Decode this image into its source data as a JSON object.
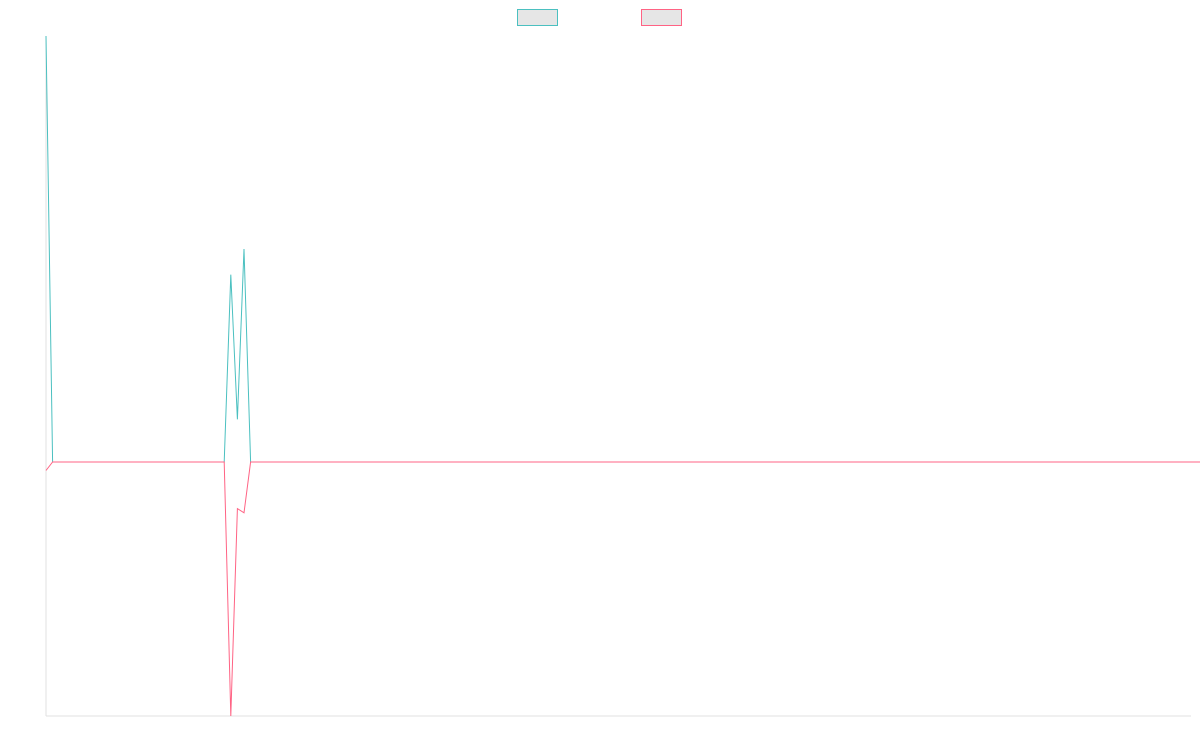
{
  "chart_data": {
    "type": "line",
    "title": "",
    "xlabel": "",
    "ylabel": "",
    "grid": false,
    "legend_position": "top",
    "x_points": 176,
    "ylim": [
      -1,
      1
    ],
    "series": [
      {
        "name": "",
        "color": "#4bc0c0",
        "legend_fill": "#e6e6e6",
        "values": [
          1,
          0,
          0,
          0,
          0,
          0,
          0,
          0,
          0,
          0,
          0,
          0,
          0,
          0,
          0,
          0,
          0,
          0,
          0,
          0,
          0,
          0,
          0,
          0,
          0,
          0,
          0,
          0,
          0.44,
          0.1,
          0.5,
          0,
          0,
          0,
          0,
          0,
          0,
          0,
          0,
          0,
          0,
          0,
          0,
          0,
          0,
          0,
          0,
          0,
          0,
          0,
          0,
          0,
          0,
          0,
          0,
          0,
          0,
          0,
          0,
          0,
          0,
          0,
          0,
          0,
          0,
          0,
          0,
          0,
          0,
          0,
          0,
          0,
          0,
          0,
          0,
          0,
          0,
          0,
          0,
          0,
          0,
          0,
          0,
          0,
          0,
          0,
          0,
          0,
          0,
          0,
          0,
          0,
          0,
          0,
          0,
          0,
          0,
          0,
          0,
          0,
          0,
          0,
          0,
          0,
          0,
          0,
          0,
          0,
          0,
          0,
          0,
          0,
          0,
          0,
          0,
          0,
          0,
          0,
          0,
          0,
          0,
          0,
          0,
          0,
          0,
          0,
          0,
          0,
          0,
          0,
          0,
          0,
          0,
          0,
          0,
          0,
          0,
          0,
          0,
          0,
          0,
          0,
          0,
          0,
          0,
          0,
          0,
          0,
          0,
          0,
          0,
          0,
          0,
          0,
          0,
          0,
          0,
          0,
          0,
          0,
          0,
          0,
          0,
          0,
          0,
          0,
          0,
          0,
          0,
          0,
          0,
          0,
          0,
          0,
          0,
          0,
          0
        ]
      },
      {
        "name": "",
        "color": "#ff6384",
        "legend_fill": "#e6e6e6",
        "values": [
          -0.02,
          0,
          0,
          0,
          0,
          0,
          0,
          0,
          0,
          0,
          0,
          0,
          0,
          0,
          0,
          0,
          0,
          0,
          0,
          0,
          0,
          0,
          0,
          0,
          0,
          0,
          0,
          0,
          -0.6,
          -0.11,
          -0.12,
          0,
          0,
          0,
          0,
          0,
          0,
          0,
          0,
          0,
          0,
          0,
          0,
          0,
          0,
          0,
          0,
          0,
          0,
          0,
          0,
          0,
          0,
          0,
          0,
          0,
          0,
          0,
          0,
          0,
          0,
          0,
          0,
          0,
          0,
          0,
          0,
          0,
          0,
          0,
          0,
          0,
          0,
          0,
          0,
          0,
          0,
          0,
          0,
          0,
          0,
          0,
          0,
          0,
          0,
          0,
          0,
          0,
          0,
          0,
          0,
          0,
          0,
          0,
          0,
          0,
          0,
          0,
          0,
          0,
          0,
          0,
          0,
          0,
          0,
          0,
          0,
          0,
          0,
          0,
          0,
          0,
          0,
          0,
          0,
          0,
          0,
          0,
          0,
          0,
          0,
          0,
          0,
          0,
          0,
          0,
          0,
          0,
          0,
          0,
          0,
          0,
          0,
          0,
          0,
          0,
          0,
          0,
          0,
          0,
          0,
          0,
          0,
          0,
          0,
          0,
          0,
          0,
          0,
          0,
          0,
          0,
          0,
          0,
          0,
          0,
          0,
          0,
          0,
          0,
          0,
          0,
          0,
          0,
          0,
          0,
          0,
          0,
          0,
          0,
          0,
          0,
          0,
          0,
          0,
          0,
          0
        ]
      }
    ]
  },
  "axes": {
    "axis_color": "#e0e0e0"
  }
}
